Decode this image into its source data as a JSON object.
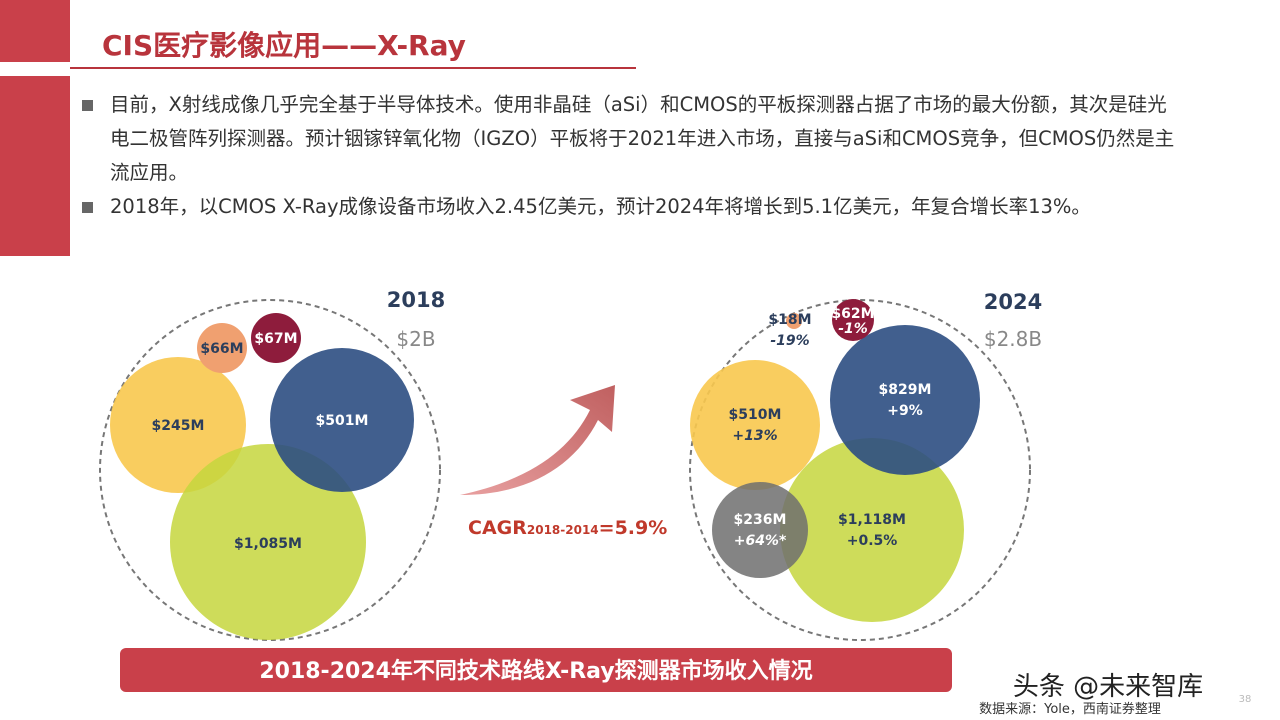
{
  "header": {
    "title": "CIS医疗影像应用——X-Ray"
  },
  "bullets": [
    "目前，X射线成像几乎完全基于半导体技术。使用非晶硅（aSi）和CMOS的平板探测器占据了市场的最大份额，其次是硅光电二极管阵列探测器。预计铟镓锌氧化物（IGZO）平板将于2021年进入市场，直接与aSi和CMOS竞争，但CMOS仍然是主流应用。",
    "2018年，以CMOS X-Ray成像设备市场收入2.45亿美元，预计2024年将增长到5.1亿美元，年复合增长率13%。"
  ],
  "figure": {
    "left": {
      "year": "2018",
      "total": "$2B",
      "bubbles": [
        {
          "label": "$66M"
        },
        {
          "label": "$67M"
        },
        {
          "label": "$245M"
        },
        {
          "label": "$501M"
        },
        {
          "label": "$1,085M"
        }
      ]
    },
    "right": {
      "year": "2024",
      "total": "$2.8B",
      "bubbles": [
        {
          "label": "$18M",
          "change": "-19%"
        },
        {
          "label": "$62M",
          "change": "-1%"
        },
        {
          "label": "$829M",
          "change": "+9%"
        },
        {
          "label": "$510M",
          "change": "+13%"
        },
        {
          "label": "$236M",
          "change": "+64%*"
        },
        {
          "label": "$1,118M",
          "change": "+0.5%"
        }
      ]
    },
    "cagr": {
      "label": "CAGR",
      "sub": "2018-2014",
      "value": "=5.9%"
    },
    "caption": "2018-2024年不同技术路线X-Ray探测器市场收入情况"
  },
  "source": "数据来源：Yole，西南证券整理",
  "watermark": "头条 @未来智库",
  "page": "38"
}
